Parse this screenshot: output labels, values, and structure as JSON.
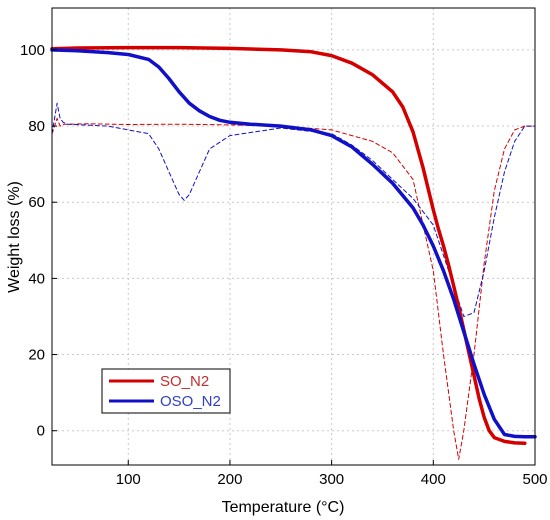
{
  "chart_data": {
    "type": "line",
    "xlabel": "Temperature (°C)",
    "ylabel": "Weight loss (%)",
    "xlim": [
      25,
      500
    ],
    "ylim": [
      -9,
      111
    ],
    "xticks": [
      100,
      200,
      300,
      400,
      500
    ],
    "yticks": [
      0,
      20,
      40,
      60,
      80,
      100
    ],
    "grid": true,
    "legend": "bottom-left",
    "series": [
      {
        "name": "SO_N2",
        "kind": "weight",
        "style": "solid",
        "color": "#d40000",
        "x": [
          25,
          50,
          100,
          150,
          200,
          250,
          280,
          300,
          320,
          340,
          360,
          370,
          380,
          390,
          400,
          405,
          410,
          415,
          420,
          425,
          430,
          435,
          440,
          445,
          450,
          455,
          460,
          470,
          480,
          490
        ],
        "y": [
          100.3,
          100.5,
          100.6,
          100.6,
          100.4,
          100.0,
          99.5,
          98.5,
          96.5,
          93.5,
          89.0,
          85.0,
          78.5,
          69.0,
          58.0,
          53.0,
          48.5,
          43.5,
          38.0,
          32.5,
          26.5,
          20.5,
          14.5,
          8.5,
          3.5,
          0.0,
          -1.8,
          -2.8,
          -3.2,
          -3.3
        ]
      },
      {
        "name": "OSO_N2",
        "kind": "weight",
        "style": "solid",
        "color": "#1010c8",
        "x": [
          25,
          50,
          80,
          100,
          120,
          130,
          140,
          150,
          160,
          170,
          180,
          190,
          200,
          220,
          250,
          280,
          300,
          320,
          340,
          360,
          380,
          390,
          400,
          410,
          420,
          430,
          440,
          450,
          460,
          470,
          480,
          490,
          500
        ],
        "y": [
          100.0,
          99.8,
          99.3,
          98.8,
          97.5,
          95.5,
          92.5,
          89.0,
          86.0,
          84.0,
          82.5,
          81.5,
          81.0,
          80.5,
          80.0,
          79.0,
          77.5,
          74.5,
          70.0,
          65.0,
          58.5,
          54.0,
          48.5,
          42.0,
          34.5,
          26.0,
          17.5,
          9.5,
          3.0,
          -1.0,
          -1.5,
          -1.6,
          -1.6
        ]
      },
      {
        "name": "",
        "kind": "derivative",
        "style": "dashed",
        "color": "#d40000",
        "x": [
          25,
          30,
          33,
          36,
          40,
          60,
          100,
          150,
          200,
          250,
          300,
          320,
          340,
          360,
          380,
          400,
          410,
          420,
          425,
          430,
          440,
          450,
          460,
          470,
          480,
          490,
          500
        ],
        "y": [
          78,
          82,
          80,
          80.5,
          80.5,
          80.6,
          80.4,
          80.5,
          80.3,
          80.0,
          79.0,
          77.5,
          76.0,
          73.0,
          66.0,
          42.0,
          20.0,
          0.0,
          -7.5,
          0.0,
          20.0,
          44.0,
          63.0,
          74.0,
          79.0,
          80.0,
          80.0
        ]
      },
      {
        "name": "",
        "kind": "derivative",
        "style": "dashed",
        "color": "#1010c8",
        "x": [
          25,
          30,
          33,
          36,
          40,
          80,
          100,
          120,
          130,
          140,
          150,
          155,
          160,
          170,
          180,
          200,
          250,
          300,
          320,
          340,
          360,
          380,
          400,
          410,
          420,
          430,
          440,
          450,
          460,
          470,
          480,
          490,
          500
        ],
        "y": [
          78,
          86,
          82,
          81,
          80.5,
          80.0,
          79.0,
          78.0,
          74.0,
          68.0,
          62.0,
          60.5,
          62.0,
          68.0,
          74.0,
          77.5,
          79.5,
          78.0,
          75.0,
          71.0,
          66.0,
          61.0,
          54.0,
          46.0,
          38.0,
          30.0,
          31.0,
          42.0,
          56.0,
          68.0,
          76.0,
          80.0,
          80.0
        ]
      }
    ]
  }
}
